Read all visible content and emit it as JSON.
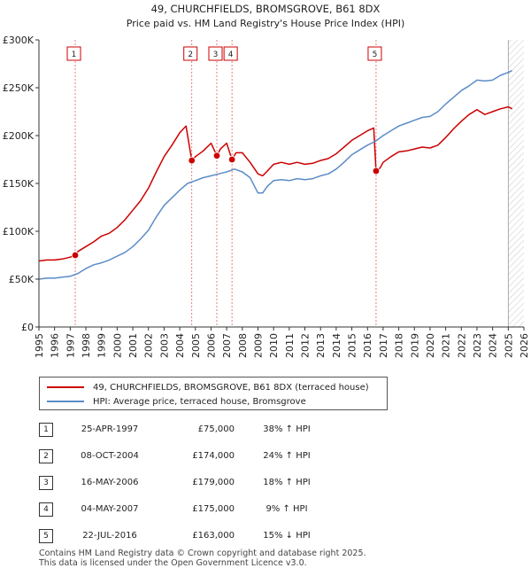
{
  "chart_data": {
    "type": "line",
    "title": "49, CHURCHFIELDS, BROMSGROVE, B61 8DX",
    "subtitle": "Price paid vs. HM Land Registry's House Price Index (HPI)",
    "xlabel": "",
    "ylabel": "",
    "xlim": [
      1995,
      2026
    ],
    "ylim": [
      0,
      300000
    ],
    "y_ticks": [
      0,
      50000,
      100000,
      150000,
      200000,
      250000,
      300000
    ],
    "y_tick_labels": [
      "£0",
      "£50K",
      "£100K",
      "£150K",
      "£200K",
      "£250K",
      "£300K"
    ],
    "x_ticks": [
      "1995",
      "1996",
      "1997",
      "1998",
      "1999",
      "2000",
      "2001",
      "2002",
      "2003",
      "2004",
      "2005",
      "2006",
      "2007",
      "2008",
      "2009",
      "2010",
      "2011",
      "2012",
      "2013",
      "2014",
      "2015",
      "2016",
      "2017",
      "2018",
      "2019",
      "2020",
      "2021",
      "2022",
      "2023",
      "2024",
      "2025",
      "2026"
    ],
    "grid": false,
    "future_shading_start": 2025.0,
    "series": [
      {
        "name": "49, CHURCHFIELDS, BROMSGROVE, B61 8DX (terraced house)",
        "color": "#cc0000",
        "x": [
          1995.0,
          1995.5,
          1996.0,
          1996.5,
          1997.0,
          1997.32,
          1997.5,
          1998.0,
          1998.5,
          1999.0,
          1999.5,
          2000.0,
          2000.5,
          2001.0,
          2001.5,
          2002.0,
          2002.5,
          2003.0,
          2003.5,
          2004.0,
          2004.4,
          2004.77,
          2005.0,
          2005.5,
          2006.0,
          2006.37,
          2006.6,
          2007.0,
          2007.34,
          2007.6,
          2008.0,
          2008.5,
          2009.0,
          2009.3,
          2009.6,
          2010.0,
          2010.5,
          2011.0,
          2011.5,
          2012.0,
          2012.5,
          2013.0,
          2013.5,
          2014.0,
          2014.5,
          2015.0,
          2015.5,
          2016.0,
          2016.4,
          2016.55,
          2016.8,
          2017.0,
          2017.5,
          2018.0,
          2018.5,
          2019.0,
          2019.5,
          2020.0,
          2020.5,
          2021.0,
          2021.5,
          2022.0,
          2022.5,
          2023.0,
          2023.5,
          2024.0,
          2024.5,
          2025.0,
          2025.25
        ],
        "values": [
          69000,
          70000,
          70000,
          71000,
          73000,
          75000,
          79000,
          84000,
          89000,
          95000,
          98000,
          104000,
          112000,
          122000,
          132000,
          145000,
          162000,
          178000,
          190000,
          203000,
          210000,
          174000,
          178000,
          184000,
          192000,
          179000,
          186000,
          192000,
          175000,
          182000,
          182000,
          172000,
          160000,
          158000,
          163000,
          170000,
          172000,
          170000,
          172000,
          170000,
          171000,
          174000,
          176000,
          181000,
          188000,
          195000,
          200000,
          205000,
          208000,
          163000,
          166000,
          172000,
          178000,
          183000,
          184000,
          186000,
          188000,
          187000,
          190000,
          198000,
          207000,
          215000,
          222000,
          227000,
          222000,
          225000,
          228000,
          230000,
          228000
        ]
      },
      {
        "name": "HPI: Average price, terraced house, Bromsgrove",
        "color": "#5b8cc8",
        "x": [
          1995.0,
          1995.5,
          1996.0,
          1996.5,
          1997.0,
          1997.5,
          1998.0,
          1998.5,
          1999.0,
          1999.5,
          2000.0,
          2000.5,
          2001.0,
          2001.5,
          2002.0,
          2002.5,
          2003.0,
          2003.5,
          2004.0,
          2004.5,
          2005.0,
          2005.5,
          2006.0,
          2006.5,
          2007.0,
          2007.5,
          2008.0,
          2008.5,
          2009.0,
          2009.3,
          2009.6,
          2010.0,
          2010.5,
          2011.0,
          2011.5,
          2012.0,
          2012.5,
          2013.0,
          2013.5,
          2014.0,
          2014.5,
          2015.0,
          2015.5,
          2016.0,
          2016.5,
          2017.0,
          2017.5,
          2018.0,
          2018.5,
          2019.0,
          2019.5,
          2020.0,
          2020.5,
          2021.0,
          2021.5,
          2022.0,
          2022.5,
          2023.0,
          2023.5,
          2024.0,
          2024.5,
          2025.0,
          2025.25
        ],
        "values": [
          50000,
          51000,
          51000,
          52000,
          53000,
          56000,
          61000,
          65000,
          67000,
          70000,
          74000,
          78000,
          84000,
          92000,
          101000,
          115000,
          127000,
          135000,
          143000,
          150000,
          153000,
          156000,
          158000,
          160000,
          162000,
          165000,
          162000,
          156000,
          140000,
          140000,
          147000,
          153000,
          154000,
          153000,
          155000,
          154000,
          155000,
          158000,
          160000,
          165000,
          172000,
          180000,
          185000,
          190000,
          194000,
          200000,
          205000,
          210000,
          213000,
          216000,
          219000,
          220000,
          225000,
          233000,
          240000,
          247000,
          252000,
          258000,
          257000,
          258000,
          263000,
          266000,
          268000
        ]
      }
    ],
    "sales": [
      {
        "id": "1",
        "x": 1997.32,
        "value": 75000
      },
      {
        "id": "2",
        "x": 2004.77,
        "value": 174000
      },
      {
        "id": "3",
        "x": 2006.37,
        "value": 179000
      },
      {
        "id": "4",
        "x": 2007.34,
        "value": 175000
      },
      {
        "id": "5",
        "x": 2016.55,
        "value": 163000
      }
    ]
  },
  "legend": {
    "property_label": "49, CHURCHFIELDS, BROMSGROVE, B61 8DX (terraced house)",
    "hpi_label": "HPI: Average price, terraced house, Bromsgrove",
    "property_color": "#cc0000",
    "hpi_color": "#5b8cc8"
  },
  "transactions": [
    {
      "id": "1",
      "date": "25-APR-1997",
      "price": "£75,000",
      "hpi": "38% ↑ HPI"
    },
    {
      "id": "2",
      "date": "08-OCT-2004",
      "price": "£174,000",
      "hpi": "24% ↑ HPI"
    },
    {
      "id": "3",
      "date": "16-MAY-2006",
      "price": "£179,000",
      "hpi": "18% ↑ HPI"
    },
    {
      "id": "4",
      "date": "04-MAY-2007",
      "price": "£175,000",
      "hpi": "9% ↑ HPI"
    },
    {
      "id": "5",
      "date": "22-JUL-2016",
      "price": "£163,000",
      "hpi": "15% ↓ HPI"
    }
  ],
  "footer": {
    "line1": "Contains HM Land Registry data © Crown copyright and database right 2025.",
    "line2": "This data is licensed under the Open Government Licence v3.0."
  }
}
